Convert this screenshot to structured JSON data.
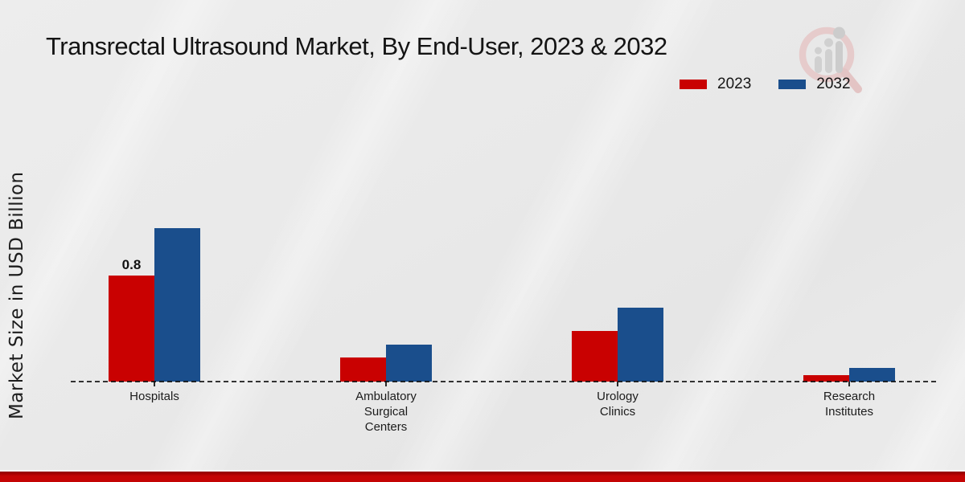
{
  "title": "Transrectal Ultrasound Market, By End-User, 2023 & 2032",
  "y_axis_label": "Market Size in USD Billion",
  "legend": {
    "items": [
      {
        "label": "2023",
        "color": "#c90101"
      },
      {
        "label": "2032",
        "color": "#1a4e8c"
      }
    ]
  },
  "watermark_icon": "magnifier-bar-chart-logo",
  "colors": {
    "bar_2023": "#c90101",
    "bar_2032": "#1a4e8c",
    "footer_band": "#c40404",
    "baseline": "#111111",
    "background": "#eaeaea"
  },
  "chart_data": {
    "type": "bar",
    "title": "Transrectal Ultrasound Market, By End-User, 2023 & 2032",
    "categories": [
      "Hospitals",
      "Ambulatory Surgical Centers",
      "Urology Clinics",
      "Research Institutes"
    ],
    "series": [
      {
        "name": "2023",
        "color": "#c90101",
        "values": [
          0.8,
          0.18,
          0.38,
          0.05
        ]
      },
      {
        "name": "2032",
        "color": "#1a4e8c",
        "values": [
          1.16,
          0.28,
          0.56,
          0.1
        ]
      }
    ],
    "bar_labels": [
      {
        "category_index": 0,
        "series_index": 0,
        "text": "0.8"
      }
    ],
    "xlabel": "",
    "ylabel": "Market Size in USD Billion",
    "ylim": [
      0,
      1.3
    ],
    "grid": false,
    "legend_position": "top-right",
    "baseline_style": "dashed"
  }
}
